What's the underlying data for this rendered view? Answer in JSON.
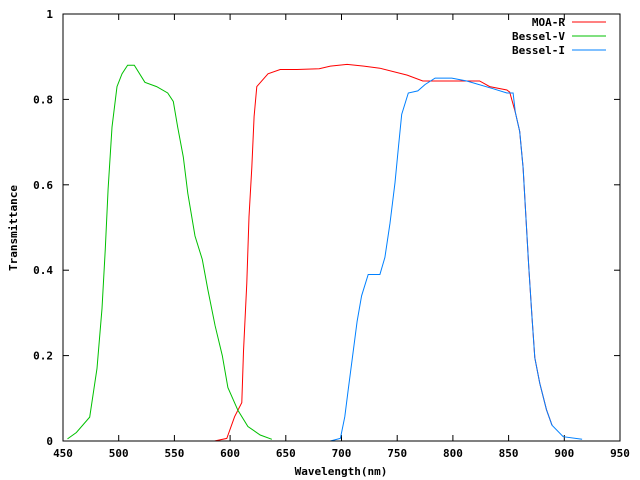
{
  "chart_data": {
    "type": "line",
    "title": "",
    "xlabel": "Wavelength(nm)",
    "ylabel": "Transmittance",
    "xlim": [
      450,
      950
    ],
    "ylim": [
      0,
      1
    ],
    "xticks": [
      450,
      500,
      550,
      600,
      650,
      700,
      750,
      800,
      850,
      900,
      950
    ],
    "yticks": [
      0,
      0.2,
      0.4,
      0.6,
      0.8,
      1
    ],
    "ytick_labels": [
      "0",
      "0.2",
      "0.4",
      "0.6",
      "0.8",
      "1"
    ],
    "grid": false,
    "legend_position": "top-right",
    "series": [
      {
        "name": "MOA-R",
        "color": "#ff0000",
        "x": [
          586,
          597,
          604,
          610.5,
          612,
          615,
          617,
          619.5,
          621.5,
          624,
          634,
          645,
          660,
          680,
          690,
          705,
          720,
          734.5,
          759,
          773,
          800,
          824,
          833,
          848.5,
          851,
          856,
          860,
          863,
          865.5,
          868,
          871,
          873.5,
          878,
          884,
          889
        ],
        "y": [
          0,
          0.006,
          0.057,
          0.09,
          0.21,
          0.37,
          0.525,
          0.64,
          0.76,
          0.83,
          0.86,
          0.87,
          0.87,
          0.872,
          0.878,
          0.882,
          0.878,
          0.873,
          0.857,
          0.843,
          0.843,
          0.843,
          0.83,
          0.822,
          0.817,
          0.77,
          0.725,
          0.64,
          0.525,
          0.41,
          0.29,
          0.195,
          0.135,
          0.073,
          0.037
        ]
      },
      {
        "name": "Bessel-V",
        "color": "#00c000",
        "x": [
          454,
          462,
          474,
          480.5,
          485,
          488,
          490.5,
          494,
          498.5,
          503,
          508,
          514,
          523.5,
          534,
          544,
          549,
          553,
          558,
          562,
          568.5,
          575,
          580,
          586.5,
          593,
          598,
          607,
          616,
          627,
          637.5
        ],
        "y": [
          0.005,
          0.02,
          0.056,
          0.17,
          0.31,
          0.45,
          0.59,
          0.735,
          0.83,
          0.86,
          0.88,
          0.88,
          0.84,
          0.83,
          0.815,
          0.795,
          0.735,
          0.665,
          0.58,
          0.48,
          0.425,
          0.355,
          0.27,
          0.2,
          0.125,
          0.072,
          0.034,
          0.014,
          0.004
        ]
      },
      {
        "name": "Bessel-I",
        "color": "#0080ff",
        "x": [
          690,
          699,
          703,
          706,
          709.5,
          714,
          718,
          724,
          734.5,
          739,
          743.5,
          748,
          751,
          754,
          760,
          768.5,
          775,
          784,
          799,
          812.5,
          836,
          848.5,
          854,
          856,
          860,
          863,
          865.5,
          868,
          871,
          873.5,
          878,
          884,
          889,
          899,
          916
        ],
        "y": [
          0,
          0.006,
          0.057,
          0.12,
          0.19,
          0.28,
          0.34,
          0.39,
          0.39,
          0.43,
          0.51,
          0.605,
          0.685,
          0.765,
          0.815,
          0.82,
          0.835,
          0.85,
          0.85,
          0.843,
          0.825,
          0.815,
          0.815,
          0.77,
          0.725,
          0.64,
          0.525,
          0.41,
          0.29,
          0.195,
          0.135,
          0.073,
          0.037,
          0.01,
          0.004
        ]
      }
    ]
  }
}
